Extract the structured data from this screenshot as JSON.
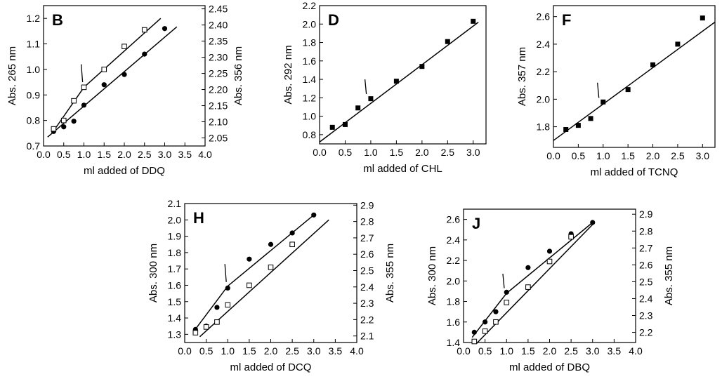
{
  "chart_data": [
    {
      "type": "scatter",
      "panel_label": "B",
      "xlabel": "ml added of DDQ",
      "ylabel": "Abs. 265 nm",
      "ylabel_right": "Abs. 356 nm",
      "xlim": [
        0.0,
        4.0
      ],
      "ylim": [
        0.7,
        1.25
      ],
      "ylim_right": [
        2.025,
        2.46
      ],
      "xticks": [
        "0.0",
        "0.5",
        "1.0",
        "1.5",
        "2.0",
        "2.5",
        "3.0",
        "3.5",
        "4.0"
      ],
      "yticks": [
        "0.7",
        "0.8",
        "0.9",
        "1.0",
        "1.1",
        "1.2"
      ],
      "yticks_right": [
        "2.05",
        "2.10",
        "2.15",
        "2.20",
        "2.25",
        "2.30",
        "2.35",
        "2.40",
        "2.45"
      ],
      "series": [
        {
          "marker": "filled-circle",
          "axis": "left",
          "x": [
            0.25,
            0.5,
            0.75,
            1.0,
            1.5,
            2.0,
            2.5,
            3.0
          ],
          "y": [
            0.757,
            0.775,
            0.797,
            0.86,
            0.94,
            0.98,
            1.06,
            1.16
          ]
        },
        {
          "marker": "open-square",
          "axis": "left",
          "x": [
            0.25,
            0.5,
            0.75,
            1.0,
            1.5,
            2.0,
            2.5
          ],
          "y": [
            0.767,
            0.8,
            0.877,
            0.93,
            1.0,
            1.09,
            1.155
          ]
        }
      ],
      "fit_lines": [
        {
          "axis": "left",
          "points": [
            [
              0.1,
              0.735
            ],
            [
              3.3,
              1.167
            ]
          ]
        },
        {
          "axis": "left",
          "points": [
            [
              0.2,
              0.748
            ],
            [
              1.0,
              0.93
            ],
            [
              2.9,
              1.2
            ]
          ]
        }
      ],
      "arrow": {
        "x": 0.95,
        "y_top": 1.02,
        "y_bottom": 0.95,
        "axis": "left"
      }
    },
    {
      "type": "scatter",
      "panel_label": "D",
      "xlabel": "ml added of CHL",
      "ylabel": "Abs. 292 nm",
      "xlim": [
        0.0,
        3.25
      ],
      "ylim": [
        0.7,
        2.2
      ],
      "xticks": [
        "0.0",
        "0.5",
        "1.0",
        "1.5",
        "2.0",
        "2.5",
        "3.0"
      ],
      "yticks": [
        "0.8",
        "1.0",
        "1.2",
        "1.4",
        "1.6",
        "1.8",
        "2.0",
        "2.2"
      ],
      "series": [
        {
          "marker": "filled-square",
          "axis": "left",
          "x": [
            0.25,
            0.5,
            0.75,
            1.0,
            1.5,
            2.0,
            2.5,
            3.0
          ],
          "y": [
            0.88,
            0.91,
            1.09,
            1.19,
            1.38,
            1.54,
            1.81,
            2.03
          ]
        }
      ],
      "fit_lines": [
        {
          "axis": "left",
          "points": [
            [
              0.0,
              0.72
            ],
            [
              3.1,
              2.02
            ]
          ]
        }
      ],
      "arrow": {
        "x": 0.9,
        "y_top": 1.4,
        "y_bottom": 1.24,
        "axis": "left"
      }
    },
    {
      "type": "scatter",
      "panel_label": "F",
      "xlabel": "ml added of TCNQ",
      "ylabel": "Abs. 357 nm",
      "xlim": [
        0.0,
        3.25
      ],
      "ylim": [
        1.65,
        2.68
      ],
      "xticks": [
        "0.0",
        "0.5",
        "1.0",
        "1.5",
        "2.0",
        "2.5",
        "3.0"
      ],
      "yticks": [
        "1.8",
        "2.0",
        "2.2",
        "2.4",
        "2.6"
      ],
      "series": [
        {
          "marker": "filled-square",
          "axis": "left",
          "x": [
            0.25,
            0.5,
            0.75,
            1.0,
            1.5,
            2.0,
            2.5,
            3.0
          ],
          "y": [
            1.78,
            1.81,
            1.86,
            1.98,
            2.07,
            2.25,
            2.4,
            2.59
          ]
        }
      ],
      "fit_lines": [
        {
          "axis": "left",
          "points": [
            [
              0.0,
              1.7
            ],
            [
              3.25,
              2.56
            ]
          ]
        }
      ],
      "arrow": {
        "x": 0.9,
        "y_top": 2.12,
        "y_bottom": 2.01,
        "axis": "left"
      }
    },
    {
      "type": "scatter",
      "panel_label": "H",
      "xlabel": "ml added of DCQ",
      "ylabel": "Abs. 300 nm",
      "ylabel_right": "Abs. 355 nm",
      "xlim": [
        0.0,
        4.0
      ],
      "ylim": [
        1.25,
        2.1
      ],
      "ylim_right": [
        2.06,
        2.91
      ],
      "xticks": [
        "0.0",
        "0.5",
        "1.0",
        "1.5",
        "2.0",
        "2.5",
        "3.0",
        "3.5",
        "4.0"
      ],
      "yticks": [
        "1.3",
        "1.4",
        "1.5",
        "1.6",
        "1.7",
        "1.8",
        "1.9",
        "2.0",
        "2.1"
      ],
      "yticks_right": [
        "2.1",
        "2.2",
        "2.3",
        "2.4",
        "2.5",
        "2.6",
        "2.7",
        "2.8",
        "2.9"
      ],
      "series": [
        {
          "marker": "filled-circle",
          "axis": "left",
          "x": [
            0.25,
            0.5,
            0.75,
            1.0,
            1.5,
            2.0,
            2.5,
            3.0
          ],
          "y": [
            1.33,
            1.35,
            1.465,
            1.583,
            1.76,
            1.85,
            1.92,
            2.03
          ]
        },
        {
          "marker": "open-square",
          "axis": "left",
          "x": [
            0.25,
            0.5,
            0.75,
            1.0,
            1.5,
            2.0,
            2.5
          ],
          "y": [
            1.31,
            1.345,
            1.375,
            1.48,
            1.6,
            1.71,
            1.85
          ]
        }
      ],
      "fit_lines": [
        {
          "axis": "left",
          "points": [
            [
              0.2,
              1.315
            ],
            [
              1.0,
              1.595
            ],
            [
              3.0,
              2.03
            ]
          ]
        },
        {
          "axis": "left",
          "points": [
            [
              0.35,
              1.285
            ],
            [
              3.35,
              2.0
            ]
          ]
        }
      ],
      "arrow": {
        "x": 0.95,
        "y_top": 1.73,
        "y_bottom": 1.62,
        "axis": "left"
      }
    },
    {
      "type": "scatter",
      "panel_label": "J",
      "xlabel": "ml added of DBQ",
      "ylabel": "Abs. 300 nm",
      "ylabel_right": "Abs. 355 nm",
      "xlim": [
        0.0,
        4.0
      ],
      "ylim": [
        1.4,
        2.7
      ],
      "ylim_right": [
        2.14,
        2.93
      ],
      "xticks": [
        "0.0",
        "0.5",
        "1.0",
        "1.5",
        "2.0",
        "2.5",
        "3.0",
        "3.5",
        "4.0"
      ],
      "yticks": [
        "1.4",
        "1.6",
        "1.8",
        "2.0",
        "2.2",
        "2.4",
        "2.6"
      ],
      "yticks_right": [
        "2.2",
        "2.3",
        "2.4",
        "2.5",
        "2.6",
        "2.7",
        "2.8",
        "2.9"
      ],
      "series": [
        {
          "marker": "filled-circle",
          "axis": "left",
          "x": [
            0.25,
            0.5,
            0.75,
            1.0,
            1.5,
            2.0,
            2.5,
            3.0
          ],
          "y": [
            1.5,
            1.6,
            1.7,
            1.89,
            2.13,
            2.29,
            2.46,
            2.57
          ]
        },
        {
          "marker": "open-square",
          "axis": "left",
          "x": [
            0.25,
            0.5,
            0.75,
            1.0,
            1.5,
            2.0,
            2.5
          ],
          "y": [
            1.41,
            1.51,
            1.6,
            1.79,
            1.94,
            2.19,
            2.43
          ]
        }
      ],
      "fit_lines": [
        {
          "axis": "left",
          "points": [
            [
              0.2,
              1.45
            ],
            [
              1.0,
              1.88
            ],
            [
              3.0,
              2.57
            ]
          ]
        },
        {
          "axis": "left",
          "points": [
            [
              0.3,
              1.39
            ],
            [
              3.0,
              2.55
            ]
          ]
        }
      ],
      "arrow": {
        "x": 0.93,
        "y_top": 2.07,
        "y_bottom": 1.93,
        "axis": "left"
      }
    }
  ]
}
